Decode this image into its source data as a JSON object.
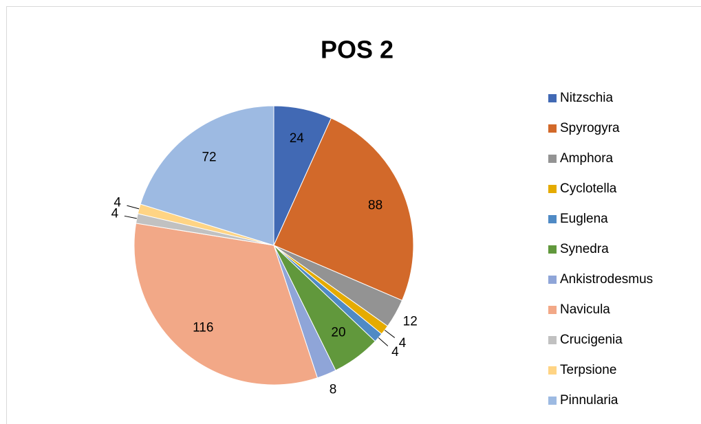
{
  "chart_data": {
    "type": "pie",
    "title": "POS 2",
    "categories": [
      "Nitzschia",
      "Spyrogyra",
      "Amphora",
      "Cyclotella",
      "Euglena",
      "Synedra",
      "Ankistrodesmus",
      "Navicula",
      "Crucigenia",
      "Terpsione",
      "Pinnularia"
    ],
    "values": [
      24,
      88,
      12,
      4,
      4,
      20,
      8,
      116,
      4,
      4,
      72
    ],
    "colors": [
      "#4169b4",
      "#d2692a",
      "#939393",
      "#e5ab00",
      "#4f8ac5",
      "#61983c",
      "#8fa5d8",
      "#f2a887",
      "#c1c1c1",
      "#ffd484",
      "#9dbae2"
    ],
    "legend": "right"
  }
}
